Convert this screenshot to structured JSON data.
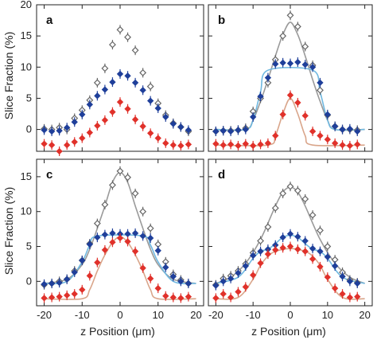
{
  "figure": {
    "xlabel": "z Position (μm)",
    "ylabel": "Slice Fraction (%)"
  },
  "chart_data": [
    {
      "type": "scatter",
      "panel": "a",
      "xlim": [
        -22,
        22
      ],
      "ylim": [
        -3.5,
        20
      ],
      "xticks": [
        "-20",
        "-10",
        "0",
        "10",
        "20"
      ],
      "yticks": [
        "0",
        "5",
        "10",
        "15",
        "20"
      ],
      "series": [
        {
          "color": "#666666",
          "marker": "open-diamond",
          "x": [
            -20,
            -18,
            -16,
            -14,
            -12,
            -10,
            -8,
            -6,
            -4,
            -2,
            0,
            2,
            4,
            6,
            8,
            10,
            12,
            14,
            16,
            18
          ],
          "y": [
            0.1,
            0.0,
            0.3,
            0.0,
            1.8,
            3.1,
            4.7,
            7.5,
            9.8,
            13.6,
            16.0,
            14.8,
            12.7,
            9.1,
            6.9,
            4.2,
            2.3,
            1.0,
            0.4,
            -0.3
          ]
        },
        {
          "color": "#1f3f9a",
          "marker": "filled-diamond",
          "x": [
            -20,
            -18,
            -16,
            -14,
            -12,
            -10,
            -8,
            -6,
            -4,
            -2,
            0,
            2,
            4,
            6,
            8,
            10,
            12,
            14,
            16,
            18
          ],
          "y": [
            -0.1,
            -0.3,
            -0.2,
            0.3,
            1.2,
            2.4,
            4.0,
            5.4,
            6.4,
            7.6,
            8.9,
            8.6,
            7.5,
            6.3,
            4.6,
            3.4,
            2.0,
            0.9,
            0.4,
            -0.1
          ]
        },
        {
          "color": "#e0312a",
          "marker": "filled-diamond",
          "x": [
            -20,
            -18,
            -16,
            -14,
            -12,
            -10,
            -8,
            -6,
            -4,
            -2,
            0,
            2,
            4,
            6,
            8,
            10,
            12,
            14,
            16,
            18
          ],
          "y": [
            -2.3,
            -2.5,
            -3.5,
            -2.5,
            -2.0,
            -1.4,
            -0.5,
            0.6,
            1.5,
            2.8,
            4.4,
            3.3,
            1.6,
            0.5,
            -0.6,
            -1.4,
            -2.2,
            -2.5,
            -2.6,
            -2.4
          ]
        }
      ],
      "fits": []
    },
    {
      "type": "scatter",
      "panel": "b",
      "xlim": [
        -22,
        22
      ],
      "ylim": [
        -3.5,
        20
      ],
      "xticks": [
        "-20",
        "-10",
        "0",
        "10",
        "20"
      ],
      "yticks": [
        "0",
        "5",
        "10",
        "15",
        "20"
      ],
      "series": [
        {
          "color": "#666666",
          "marker": "open-diamond",
          "x": [
            -20,
            -18,
            -16,
            -14,
            -12,
            -10,
            -8,
            -6,
            -4,
            -2,
            0,
            2,
            4,
            6,
            8,
            10,
            12,
            14,
            16,
            18
          ],
          "y": [
            -0.3,
            -0.2,
            -0.2,
            -0.1,
            0.2,
            2.9,
            5.0,
            7.5,
            11.2,
            15.0,
            18.3,
            16.5,
            13.3,
            10.3,
            6.3,
            2.3,
            0.5,
            0.0,
            0.0,
            -0.1
          ]
        },
        {
          "color": "#1f3f9a",
          "marker": "filled-diamond",
          "x": [
            -20,
            -18,
            -16,
            -14,
            -12,
            -10,
            -8,
            -6,
            -4,
            -2,
            0,
            2,
            4,
            6,
            8,
            10,
            12,
            14,
            16,
            18
          ],
          "y": [
            -0.3,
            -0.2,
            -0.3,
            -0.1,
            0.0,
            2.0,
            5.3,
            8.3,
            10.5,
            10.7,
            10.6,
            10.8,
            10.4,
            10.0,
            7.5,
            2.4,
            0.5,
            0.0,
            0.1,
            -0.3
          ]
        },
        {
          "color": "#e0312a",
          "marker": "filled-diamond",
          "x": [
            -20,
            -18,
            -16,
            -14,
            -12,
            -10,
            -8,
            -6,
            -4,
            -2,
            0,
            2,
            4,
            6,
            8,
            10,
            12,
            14,
            16,
            18
          ],
          "y": [
            -2.3,
            -2.5,
            -2.4,
            -2.6,
            -2.3,
            -2.6,
            -2.4,
            -2.2,
            -1.0,
            2.4,
            5.5,
            4.3,
            2.2,
            -0.3,
            -1.0,
            -1.6,
            -2.2,
            -2.5,
            -2.6,
            -2.4
          ]
        }
      ],
      "fits": [
        {
          "color": "#9a9a9a",
          "x": [
            -20,
            -12,
            -10,
            -8,
            -6,
            -4,
            -2,
            0,
            2,
            4,
            6,
            8,
            10,
            12,
            20
          ],
          "y": [
            0,
            0,
            1.5,
            4.5,
            8.0,
            11.8,
            15.2,
            17.2,
            15.2,
            11.8,
            8.0,
            4.5,
            1.5,
            0,
            0
          ]
        },
        {
          "color": "#6fb8e0",
          "x": [
            -20,
            -12,
            -10,
            -8,
            -6,
            6,
            8,
            10,
            12,
            20
          ],
          "y": [
            0,
            0,
            1.5,
            6.0,
            9.5,
            9.5,
            6.0,
            1.5,
            0,
            0
          ]
        },
        {
          "color": "#d9a58a",
          "x": [
            -20,
            -6,
            -4,
            -2,
            0,
            2,
            4,
            6,
            20
          ],
          "y": [
            -2.5,
            -2.5,
            -1.0,
            2.5,
            5.0,
            2.5,
            -1.0,
            -2.5,
            -2.5
          ]
        }
      ]
    },
    {
      "type": "scatter",
      "panel": "c",
      "xlim": [
        -22,
        22
      ],
      "ylim": [
        -3.5,
        17.5
      ],
      "xticks": [
        "-20",
        "-10",
        "0",
        "10",
        "20"
      ],
      "yticks": [
        "0",
        "5",
        "10",
        "15"
      ],
      "series": [
        {
          "color": "#666666",
          "marker": "open-diamond",
          "x": [
            -20,
            -18,
            -16,
            -14,
            -12,
            -10,
            -8,
            -6,
            -4,
            -2,
            0,
            2,
            4,
            6,
            8,
            10,
            12,
            14,
            16,
            18
          ],
          "y": [
            -0.5,
            -0.3,
            0.0,
            0.3,
            1.5,
            3.0,
            5.4,
            8.3,
            11.0,
            13.8,
            15.8,
            14.9,
            12.6,
            10.0,
            7.6,
            5.3,
            2.8,
            1.0,
            0.2,
            -0.3
          ]
        },
        {
          "color": "#1f3f9a",
          "marker": "filled-diamond",
          "x": [
            -20,
            -18,
            -16,
            -14,
            -12,
            -10,
            -8,
            -6,
            -4,
            -2,
            0,
            2,
            4,
            6,
            8,
            10,
            12,
            14,
            16,
            18
          ],
          "y": [
            -0.4,
            -0.3,
            -0.2,
            0.3,
            1.3,
            3.0,
            5.3,
            6.3,
            6.7,
            6.9,
            6.8,
            6.8,
            6.9,
            6.5,
            6.2,
            4.4,
            2.0,
            0.7,
            0.0,
            -0.3
          ]
        },
        {
          "color": "#e0312a",
          "marker": "filled-diamond",
          "x": [
            -20,
            -18,
            -16,
            -14,
            -12,
            -10,
            -8,
            -6,
            -4,
            -2,
            0,
            2,
            4,
            6,
            8,
            10,
            12,
            14,
            16,
            18
          ],
          "y": [
            -2.4,
            -2.3,
            -2.2,
            -2.0,
            -1.8,
            -1.2,
            0.8,
            2.7,
            4.5,
            5.6,
            6.2,
            5.7,
            4.3,
            1.9,
            0.4,
            -1.0,
            -2.1,
            -2.3,
            -2.4,
            -2.2
          ]
        }
      ],
      "fits": [
        {
          "color": "#9a9a9a",
          "x": [
            -20,
            -14,
            -10,
            -8,
            -6,
            -4,
            -2,
            0,
            2,
            4,
            6,
            8,
            10,
            14,
            20
          ],
          "y": [
            -0.3,
            0.3,
            2.4,
            4.6,
            7.6,
            10.8,
            14.2,
            15.6,
            14.2,
            10.8,
            7.6,
            4.6,
            2.4,
            0.3,
            -0.3
          ]
        },
        {
          "color": "#6fb8e0",
          "x": [
            -20,
            -14,
            -10,
            -8,
            -6,
            6,
            8,
            10,
            14,
            20
          ],
          "y": [
            -0.3,
            0.0,
            2.8,
            5.2,
            6.5,
            6.5,
            5.2,
            2.8,
            0.0,
            -0.3
          ]
        },
        {
          "color": "#d9a58a",
          "x": [
            -20,
            -10,
            -8,
            -6,
            -4,
            -2,
            0,
            2,
            4,
            6,
            8,
            10,
            20
          ],
          "y": [
            -2.5,
            -2.5,
            -1.2,
            1.5,
            3.8,
            5.6,
            6.4,
            5.6,
            3.8,
            1.5,
            -1.2,
            -2.5,
            -2.5
          ]
        }
      ]
    },
    {
      "type": "scatter",
      "panel": "d",
      "xlim": [
        -22,
        22
      ],
      "ylim": [
        -3.5,
        17.5
      ],
      "xticks": [
        "-20",
        "-10",
        "0",
        "10",
        "20"
      ],
      "yticks": [
        "0",
        "5",
        "10",
        "15"
      ],
      "series": [
        {
          "color": "#666666",
          "marker": "open-diamond",
          "x": [
            -20,
            -18,
            -16,
            -14,
            -12,
            -10,
            -8,
            -6,
            -4,
            -2,
            0,
            2,
            4,
            6,
            8,
            10,
            12,
            14,
            16,
            18
          ],
          "y": [
            -0.5,
            0.4,
            0.8,
            1.5,
            2.5,
            4.1,
            5.8,
            7.8,
            10.5,
            12.6,
            13.6,
            13.0,
            11.8,
            9.5,
            7.3,
            5.0,
            3.1,
            1.3,
            0.2,
            -0.2
          ]
        },
        {
          "color": "#1f3f9a",
          "marker": "filled-diamond",
          "x": [
            -20,
            -18,
            -16,
            -14,
            -12,
            -10,
            -8,
            -6,
            -4,
            -2,
            0,
            2,
            4,
            6,
            8,
            10,
            12,
            14,
            16,
            18
          ],
          "y": [
            -0.6,
            0.0,
            0.4,
            1.2,
            2.2,
            3.7,
            4.3,
            4.6,
            5.2,
            6.3,
            6.8,
            6.4,
            5.8,
            4.7,
            4.3,
            3.5,
            2.2,
            0.7,
            0.0,
            -0.3
          ]
        },
        {
          "color": "#e0312a",
          "marker": "filled-diamond",
          "x": [
            -20,
            -18,
            -16,
            -14,
            -12,
            -10,
            -8,
            -6,
            -4,
            -2,
            0,
            2,
            4,
            6,
            8,
            10,
            12,
            14,
            16,
            18
          ],
          "y": [
            -2.4,
            -1.8,
            -2.3,
            -1.5,
            -0.8,
            0.9,
            2.6,
            3.9,
            4.5,
            4.8,
            5.0,
            4.6,
            4.3,
            3.2,
            2.1,
            0.6,
            -1.0,
            -1.8,
            -2.3,
            -2.2
          ]
        }
      ],
      "fits": [
        {
          "color": "#9a9a9a",
          "x": [
            -20,
            -16,
            -12,
            -8,
            -4,
            -2,
            0,
            2,
            4,
            8,
            12,
            16,
            20
          ],
          "y": [
            -0.3,
            0.6,
            2.6,
            6.0,
            10.8,
            12.8,
            13.5,
            12.8,
            10.8,
            6.0,
            2.6,
            0.6,
            -0.3
          ]
        },
        {
          "color": "#6fb8e0",
          "x": [
            -20,
            -14,
            -10,
            -8,
            -6,
            -4,
            -2,
            0,
            2,
            4,
            6,
            8,
            10,
            14,
            20
          ],
          "y": [
            -0.3,
            0.6,
            3.3,
            4.3,
            4.6,
            5.4,
            6.3,
            6.6,
            6.3,
            5.4,
            4.6,
            4.3,
            3.3,
            0.6,
            -0.3
          ]
        },
        {
          "color": "#d9a58a",
          "x": [
            -20,
            -14,
            -10,
            -8,
            -6,
            -4,
            0,
            4,
            6,
            8,
            10,
            14,
            20
          ],
          "y": [
            -2.5,
            -2.3,
            0.3,
            2.3,
            3.6,
            4.3,
            4.7,
            4.3,
            3.6,
            2.3,
            0.3,
            -2.3,
            -2.5
          ]
        }
      ]
    }
  ]
}
